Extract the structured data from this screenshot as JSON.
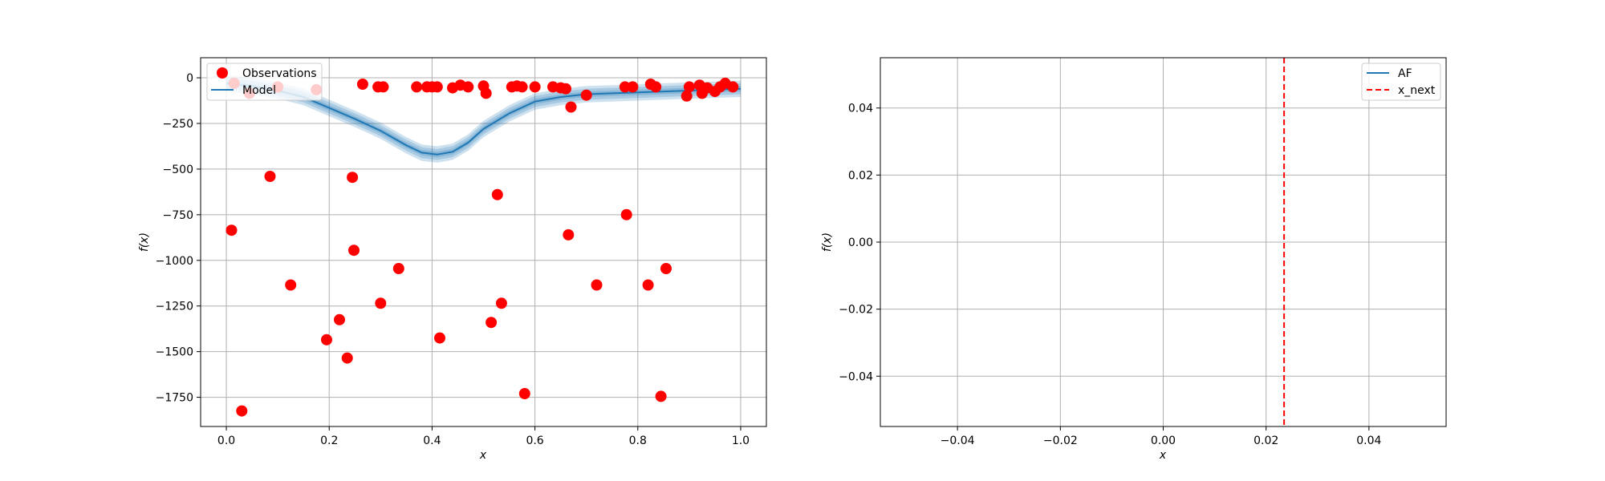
{
  "chart_data": [
    {
      "type": "line",
      "xlabel": "x",
      "ylabel": "f(x)",
      "xlim": [
        -0.05,
        1.05
      ],
      "ylim": [
        -1910,
        110
      ],
      "xticks": [
        0.0,
        0.2,
        0.4,
        0.6,
        0.8,
        1.0
      ],
      "xtick_labels": [
        "0.0",
        "0.2",
        "0.4",
        "0.6",
        "0.8",
        "1.0"
      ],
      "yticks": [
        0,
        -250,
        -500,
        -750,
        -1000,
        -1250,
        -1500,
        -1750
      ],
      "ytick_labels": [
        "0",
        "−250",
        "−500",
        "−750",
        "−1000",
        "−1250",
        "−1500",
        "−1750"
      ],
      "grid": true,
      "legend_location": "top-left",
      "legend": [
        "Observations",
        "Model"
      ],
      "colors": {
        "observations": "#ff0000",
        "model": "#1f77b4",
        "band": "#1f77b4"
      },
      "series": [
        {
          "name": "Observations",
          "kind": "scatter",
          "x": [
            0.01,
            0.015,
            0.03,
            0.045,
            0.085,
            0.1,
            0.125,
            0.175,
            0.195,
            0.22,
            0.235,
            0.245,
            0.248,
            0.265,
            0.295,
            0.3,
            0.305,
            0.335,
            0.37,
            0.39,
            0.4,
            0.41,
            0.415,
            0.44,
            0.455,
            0.47,
            0.5,
            0.505,
            0.515,
            0.527,
            0.535,
            0.555,
            0.565,
            0.575,
            0.58,
            0.6,
            0.635,
            0.65,
            0.66,
            0.665,
            0.67,
            0.7,
            0.72,
            0.775,
            0.778,
            0.79,
            0.82,
            0.825,
            0.835,
            0.845,
            0.855,
            0.895,
            0.9,
            0.92,
            0.925,
            0.935,
            0.95,
            0.96,
            0.97,
            0.985
          ],
          "y": [
            -835,
            -30,
            -1825,
            -85,
            -540,
            -50,
            -1135,
            -65,
            -1435,
            -1325,
            -1535,
            -545,
            -945,
            -35,
            -50,
            -1235,
            -50,
            -1045,
            -50,
            -50,
            -50,
            -50,
            -1425,
            -55,
            -40,
            -50,
            -45,
            -85,
            -1340,
            -640,
            -1235,
            -50,
            -45,
            -50,
            -1730,
            -50,
            -50,
            -55,
            -60,
            -860,
            -160,
            -95,
            -1135,
            -50,
            -750,
            -50,
            -1135,
            -35,
            -50,
            -1745,
            -1045,
            -100,
            -50,
            -40,
            -85,
            -55,
            -75,
            -50,
            -30,
            -50
          ]
        },
        {
          "name": "Model",
          "kind": "line",
          "x": [
            0.0,
            0.05,
            0.1,
            0.15,
            0.2,
            0.25,
            0.3,
            0.35,
            0.38,
            0.41,
            0.44,
            0.47,
            0.5,
            0.55,
            0.6,
            0.65,
            0.7,
            0.75,
            0.8,
            0.85,
            0.9,
            0.95,
            1.0
          ],
          "y": [
            -30,
            -45,
            -70,
            -105,
            -165,
            -225,
            -290,
            -370,
            -410,
            -420,
            -405,
            -355,
            -280,
            -195,
            -130,
            -105,
            -90,
            -85,
            -80,
            -75,
            -70,
            -65,
            -60
          ]
        }
      ],
      "band_halfwidths": [
        15,
        30,
        45
      ]
    },
    {
      "type": "line",
      "xlabel": "x",
      "ylabel": "f(x)",
      "xlim": [
        -0.055,
        0.055
      ],
      "ylim": [
        -0.055,
        0.055
      ],
      "xticks": [
        -0.04,
        -0.02,
        0.0,
        0.02,
        0.04
      ],
      "xtick_labels": [
        "−0.04",
        "−0.02",
        "0.00",
        "0.02",
        "0.04"
      ],
      "yticks": [
        0.04,
        0.02,
        0.0,
        -0.02,
        -0.04
      ],
      "ytick_labels": [
        "0.04",
        "0.02",
        "0.00",
        "−0.02",
        "−0.04"
      ],
      "grid": true,
      "legend_location": "top-right",
      "legend": [
        "AF",
        "x_next"
      ],
      "colors": {
        "af": "#1f77b4",
        "x_next": "#ff0000"
      },
      "series": [
        {
          "name": "AF",
          "kind": "line",
          "x": [],
          "y": []
        },
        {
          "name": "x_next",
          "kind": "vline",
          "x": 0.0235
        }
      ]
    }
  ]
}
